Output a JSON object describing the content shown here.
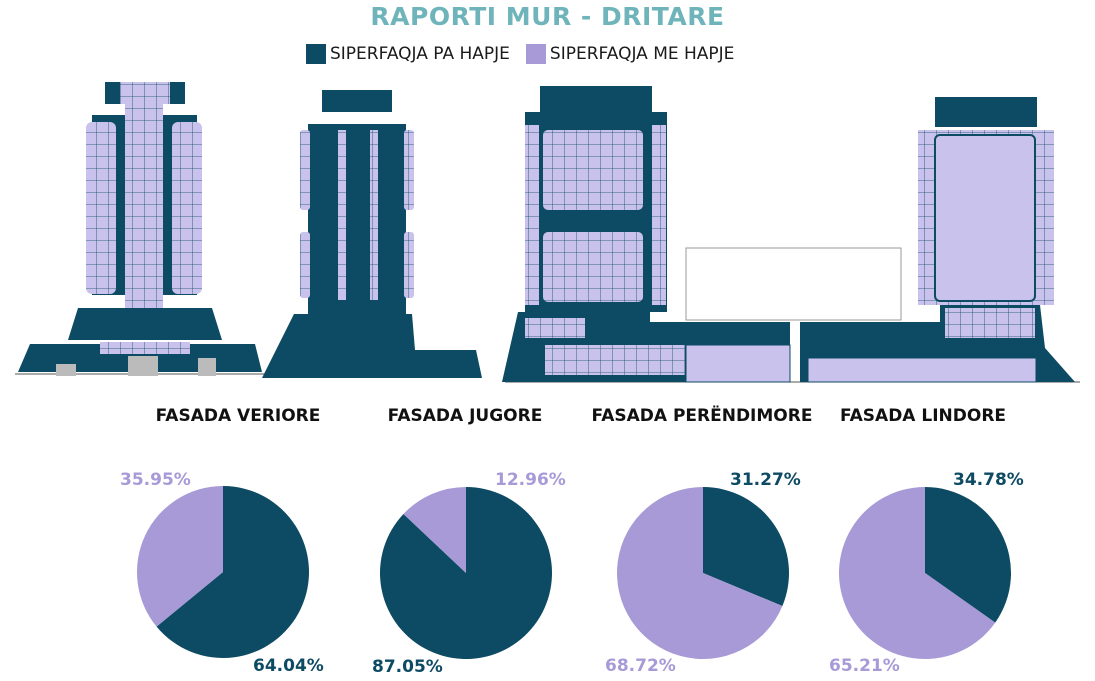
{
  "title": "RAPORTI MUR - DRITARE",
  "colors": {
    "wall": "#0d4a63",
    "opening": "#a79ad6",
    "title": "#6fb4bb"
  },
  "legend": [
    {
      "label": "SIPERFAQJA PA HAPJE",
      "color": "#0d4a63"
    },
    {
      "label": "SIPERFAQJA ME HAPJE",
      "color": "#a79ad6"
    }
  ],
  "chart_data": [
    {
      "type": "pie",
      "title": "FASADA VERIORE",
      "slices": [
        {
          "name": "SIPERFAQJA PA HAPJE",
          "value": 64.04,
          "label": "64.04%"
        },
        {
          "name": "SIPERFAQJA ME HAPJE",
          "value": 35.95,
          "label": "35.95%"
        }
      ]
    },
    {
      "type": "pie",
      "title": "FASADA JUGORE",
      "slices": [
        {
          "name": "SIPERFAQJA PA HAPJE",
          "value": 87.05,
          "label": "87.05%"
        },
        {
          "name": "SIPERFAQJA ME HAPJE",
          "value": 12.96,
          "label": "12.96%"
        }
      ]
    },
    {
      "type": "pie",
      "title": "FASADA PERËNDIMORE",
      "slices": [
        {
          "name": "SIPERFAQJA PA HAPJE",
          "value": 31.27,
          "label": "31.27%"
        },
        {
          "name": "SIPERFAQJA ME HAPJE",
          "value": 68.72,
          "label": "68.72%"
        }
      ]
    },
    {
      "type": "pie",
      "title": "FASADA LINDORE",
      "slices": [
        {
          "name": "SIPERFAQJA PA HAPJE",
          "value": 34.78,
          "label": "34.78%"
        },
        {
          "name": "SIPERFAQJA ME HAPJE",
          "value": 65.21,
          "label": "65.21%"
        }
      ]
    }
  ]
}
